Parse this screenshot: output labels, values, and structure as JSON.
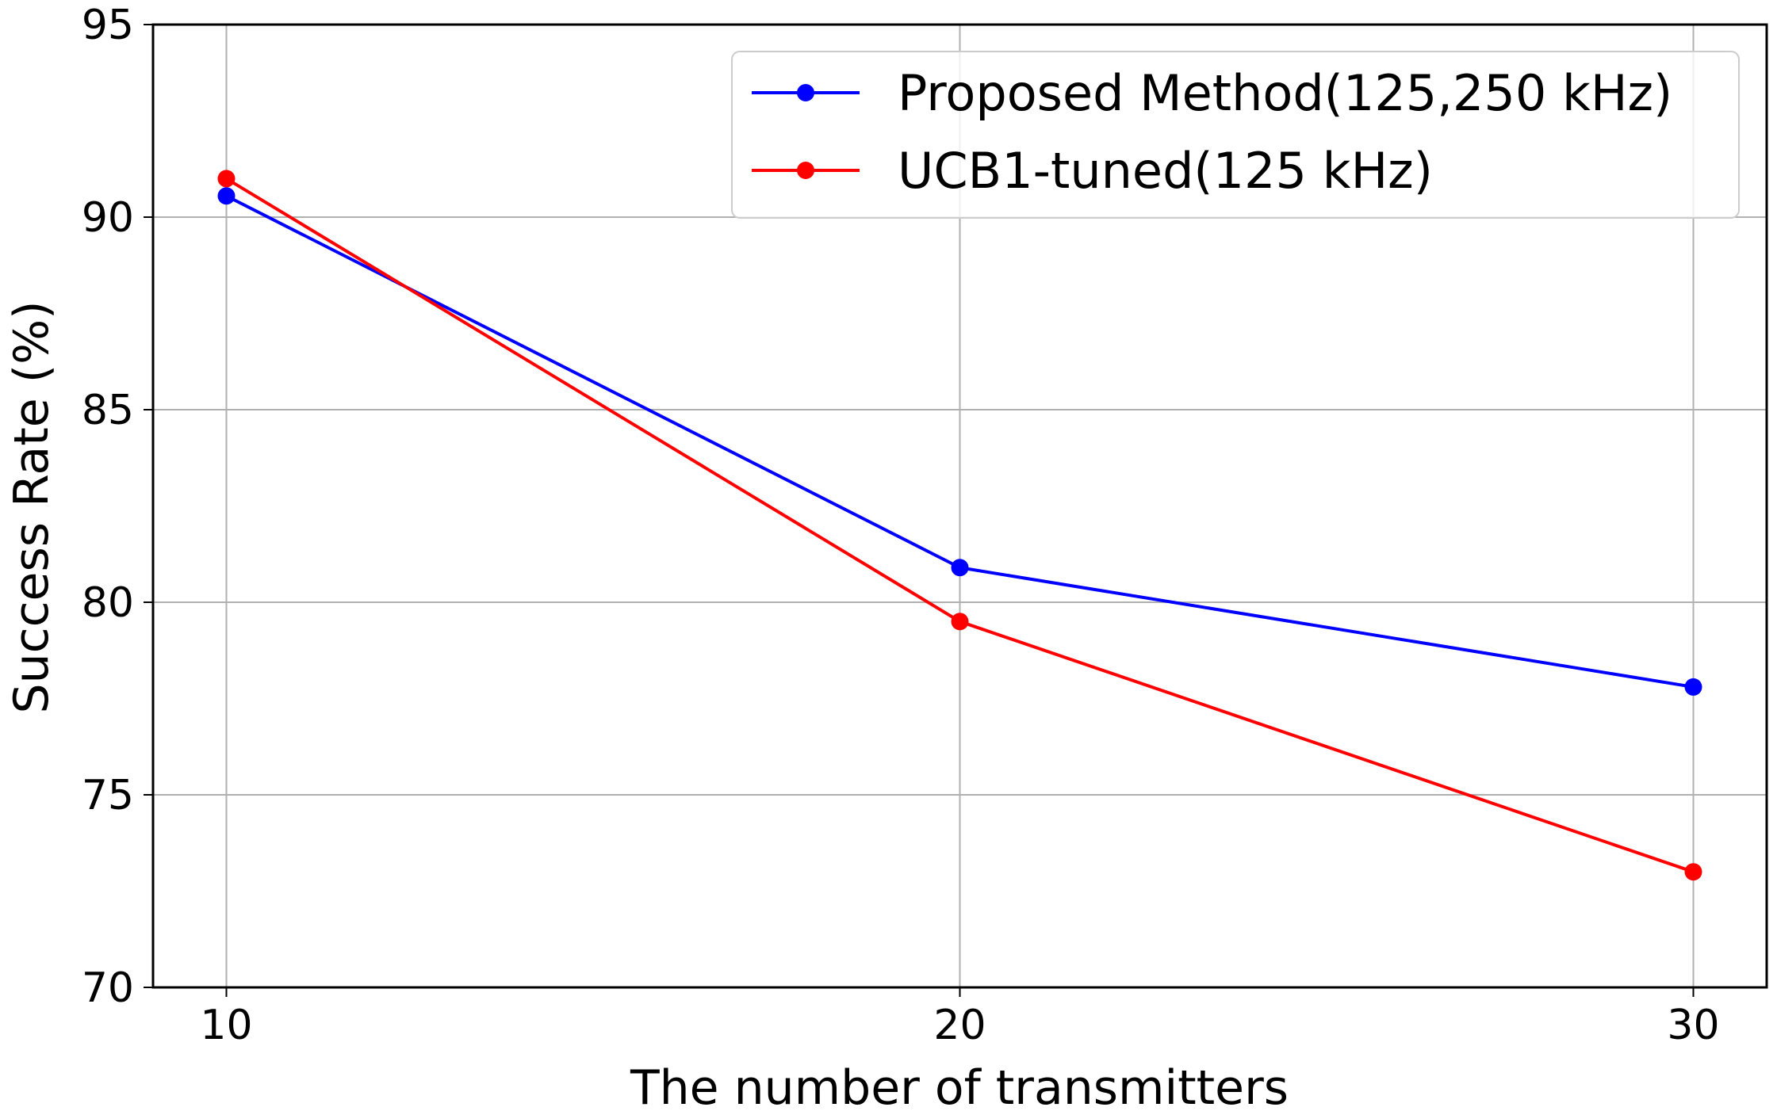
{
  "chart_data": {
    "type": "line",
    "title": "",
    "xlabel": "The number of transmitters",
    "ylabel": "Success Rate (%)",
    "x": [
      10,
      20,
      30
    ],
    "xticks": [
      "10",
      "20",
      "30"
    ],
    "xlim": [
      9,
      31
    ],
    "ylim": [
      70,
      95
    ],
    "yticks": [
      "70",
      "75",
      "80",
      "85",
      "90",
      "95"
    ],
    "grid": true,
    "legend_position": "top-right",
    "series": [
      {
        "name": "Proposed Method(125,250 kHz)",
        "color": "#0000ff",
        "values": [
          90.55,
          80.9,
          77.8
        ]
      },
      {
        "name": "UCB1-tuned(125 kHz)",
        "color": "#ff0000",
        "values": [
          91.0,
          79.5,
          73.0
        ]
      }
    ]
  }
}
